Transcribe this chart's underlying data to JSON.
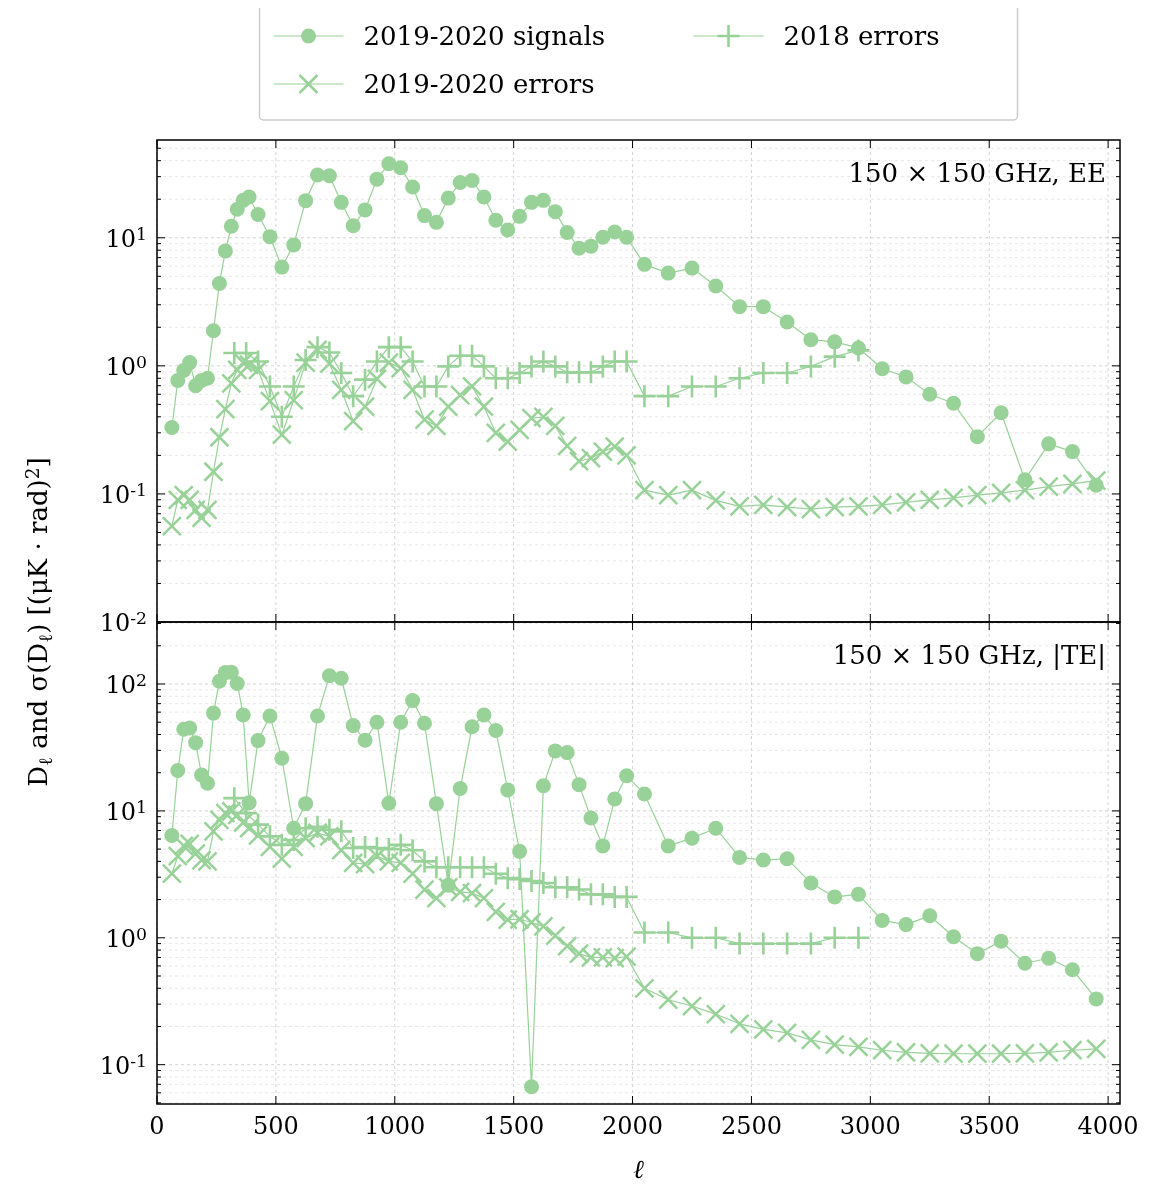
{
  "chart_data": [
    {
      "type": "line",
      "ylabel": "D$_{ℓ}$ and σ(D$_{ℓ}$) [(μK · rad)$^{2}$]",
      "annotations": [
        "150 × 150 GHz, EE"
      ],
      "log": "y",
      "grid": true,
      "legend": "top",
      "tick_labels": "y",
      "line_style": "solid",
      "xlim": [
        0,
        4050
      ],
      "xticks": [
        0,
        500,
        1000,
        1500,
        2000,
        2500,
        3000,
        3500,
        4000
      ],
      "ylim": [
        0.01,
        58
      ],
      "yticks": [
        {
          "value": 0.01,
          "label": "10$^{-2}$"
        },
        {
          "value": 0.1,
          "label": "10$^{-1}$"
        },
        {
          "value": 1,
          "label": "10$^{0}$"
        },
        {
          "value": 10,
          "label": "10$^{1}$"
        }
      ],
      "series": [
        {
          "name": "2019-2020 signals",
          "color": "#98d298",
          "marker": "circle",
          "x": [
            62.5,
            87.5,
            112.5,
            137.5,
            162.5,
            187.5,
            212.5,
            237.5,
            262.5,
            287.5,
            312.5,
            337.5,
            362.5,
            387.5,
            425,
            475,
            525,
            575,
            625,
            675,
            725,
            775,
            825,
            875,
            925,
            975,
            1025,
            1075,
            1125,
            1175,
            1225,
            1275,
            1325,
            1375,
            1425,
            1475,
            1525,
            1575,
            1625,
            1675,
            1725,
            1775,
            1825,
            1875,
            1925,
            1975,
            2050,
            2150,
            2250,
            2350,
            2450,
            2550,
            2650,
            2750,
            2850,
            2950,
            3050,
            3150,
            3250,
            3350,
            3450,
            3550,
            3650,
            3750,
            3850,
            3950
          ],
          "values": [
            0.33,
            0.77,
            0.92,
            1.06,
            0.7,
            0.77,
            0.8,
            1.88,
            4.4,
            7.9,
            12.3,
            16.7,
            19.6,
            20.8,
            15.2,
            10.2,
            5.9,
            8.8,
            19.5,
            30.9,
            30.5,
            18.9,
            12.4,
            16.5,
            28.7,
            37.8,
            35.2,
            24.9,
            14.9,
            13.2,
            20.4,
            27,
            28,
            20.8,
            13.7,
            11.5,
            14.7,
            18.9,
            19.6,
            16,
            11,
            8.3,
            8.6,
            10.1,
            11.1,
            10.1,
            6.2,
            5.3,
            5.8,
            4.2,
            2.9,
            2.9,
            2.2,
            1.6,
            1.54,
            1.38,
            0.95,
            0.82,
            0.6,
            0.51,
            0.28,
            0.43,
            0.129,
            0.246,
            0.214,
            0.117
          ]
        },
        {
          "name": "2019-2020 errors",
          "color": "#98d298",
          "marker": "x",
          "x": [
            62.5,
            87.5,
            112.5,
            137.5,
            162.5,
            187.5,
            212.5,
            237.5,
            262.5,
            287.5,
            312.5,
            337.5,
            362.5,
            387.5,
            425,
            475,
            525,
            575,
            625,
            675,
            725,
            775,
            825,
            875,
            925,
            975,
            1025,
            1075,
            1125,
            1175,
            1225,
            1275,
            1325,
            1375,
            1425,
            1475,
            1525,
            1575,
            1625,
            1675,
            1725,
            1775,
            1825,
            1875,
            1925,
            1975,
            2050,
            2150,
            2250,
            2350,
            2450,
            2550,
            2650,
            2750,
            2850,
            2950,
            3050,
            3150,
            3250,
            3350,
            3450,
            3550,
            3650,
            3750,
            3850,
            3950
          ],
          "values": [
            0.056,
            0.09,
            0.098,
            0.09,
            0.075,
            0.065,
            0.075,
            0.149,
            0.277,
            0.46,
            0.73,
            0.93,
            1.06,
            1.02,
            0.93,
            0.53,
            0.29,
            0.54,
            1.06,
            1.33,
            1.04,
            0.65,
            0.37,
            0.48,
            0.79,
            1.06,
            0.96,
            0.65,
            0.38,
            0.34,
            0.48,
            0.59,
            0.69,
            0.48,
            0.3,
            0.256,
            0.316,
            0.39,
            0.4,
            0.34,
            0.237,
            0.18,
            0.19,
            0.214,
            0.234,
            0.2,
            0.107,
            0.098,
            0.107,
            0.089,
            0.08,
            0.082,
            0.079,
            0.076,
            0.079,
            0.08,
            0.082,
            0.086,
            0.09,
            0.093,
            0.098,
            0.102,
            0.107,
            0.114,
            0.12,
            0.127
          ]
        },
        {
          "name": "2018 errors",
          "color": "#98d298",
          "marker": "cross",
          "x": [
            325,
            375,
            425,
            475,
            525,
            575,
            625,
            675,
            725,
            775,
            825,
            875,
            925,
            975,
            1025,
            1075,
            1125,
            1175,
            1225,
            1275,
            1325,
            1375,
            1425,
            1475,
            1525,
            1575,
            1625,
            1675,
            1725,
            1775,
            1825,
            1875,
            1925,
            1975,
            2050,
            2150,
            2250,
            2350,
            2450,
            2550,
            2650,
            2750,
            2850,
            2950
          ],
          "values": [
            1.26,
            1.26,
            1.08,
            0.69,
            0.4,
            0.69,
            1.11,
            1.4,
            1.27,
            0.88,
            0.58,
            0.78,
            1.08,
            1.4,
            1.4,
            1.08,
            0.69,
            0.69,
            0.99,
            1.2,
            1.2,
            0.99,
            0.8,
            0.8,
            0.88,
            0.99,
            1.08,
            0.99,
            0.89,
            0.89,
            0.89,
            0.99,
            1.08,
            1.08,
            0.58,
            0.58,
            0.69,
            0.69,
            0.8,
            0.88,
            0.88,
            0.99,
            1.18,
            1.32
          ]
        }
      ]
    },
    {
      "type": "line",
      "xlabel": "ℓ",
      "annotations": [
        "150 × 150 GHz, |TE|"
      ],
      "log": "y",
      "grid": true,
      "line_style": "solid",
      "xlim": [
        0,
        4050
      ],
      "xticks": [
        0,
        500,
        1000,
        1500,
        2000,
        2500,
        3000,
        3500,
        4000
      ],
      "ylim": [
        0.049,
        308
      ],
      "yticks": [
        {
          "value": 0.1,
          "label": "10$^{-1}$"
        },
        {
          "value": 1,
          "label": "10$^{0}$"
        },
        {
          "value": 10,
          "label": "10$^{1}$"
        },
        {
          "value": 100,
          "label": "10$^{2}$"
        }
      ],
      "series": [
        {
          "color": "#98d298",
          "marker": "circle",
          "x": [
            62.5,
            87.5,
            112.5,
            137.5,
            162.5,
            187.5,
            212.5,
            237.5,
            262.5,
            287.5,
            312.5,
            337.5,
            362.5,
            387.5,
            425,
            475,
            525,
            575,
            625,
            675,
            725,
            775,
            825,
            875,
            925,
            975,
            1025,
            1075,
            1125,
            1175,
            1225,
            1275,
            1325,
            1375,
            1425,
            1475,
            1525,
            1575,
            1625,
            1675,
            1725,
            1775,
            1825,
            1875,
            1925,
            1975,
            2050,
            2150,
            2250,
            2350,
            2450,
            2550,
            2650,
            2750,
            2850,
            2950,
            3050,
            3150,
            3250,
            3350,
            3450,
            3550,
            3650,
            3750,
            3850,
            3950
          ],
          "values": [
            6.4,
            20.8,
            44,
            45,
            34.5,
            19.2,
            16.5,
            59,
            105,
            123,
            124,
            101,
            57,
            11.6,
            35.8,
            56,
            26,
            7.3,
            11.4,
            56,
            116,
            111,
            47,
            36,
            50,
            11.5,
            50,
            74,
            49,
            11.4,
            2.6,
            15,
            46,
            57,
            43,
            14.6,
            4.8,
            0.067,
            15.8,
            29.7,
            28.8,
            16.1,
            8.8,
            5.3,
            12.4,
            18.9,
            13.6,
            5.3,
            6.1,
            7.3,
            4.3,
            4.1,
            4.2,
            2.7,
            2.1,
            2.2,
            1.37,
            1.27,
            1.49,
            1.02,
            0.75,
            0.94,
            0.63,
            0.69,
            0.56,
            0.33
          ]
        },
        {
          "color": "#98d298",
          "marker": "x",
          "x": [
            62.5,
            87.5,
            112.5,
            137.5,
            162.5,
            187.5,
            212.5,
            237.5,
            262.5,
            287.5,
            312.5,
            337.5,
            362.5,
            387.5,
            425,
            475,
            525,
            575,
            625,
            675,
            725,
            775,
            825,
            875,
            925,
            975,
            1025,
            1075,
            1125,
            1175,
            1225,
            1275,
            1325,
            1375,
            1425,
            1475,
            1525,
            1575,
            1625,
            1675,
            1725,
            1775,
            1825,
            1875,
            1925,
            1975,
            2050,
            2150,
            2250,
            2350,
            2450,
            2550,
            2650,
            2750,
            2850,
            2950,
            3050,
            3150,
            3250,
            3350,
            3450,
            3550,
            3650,
            3750,
            3850,
            3950
          ],
          "values": [
            3.2,
            4.4,
            5.3,
            5.5,
            4.6,
            4.1,
            4.0,
            6.9,
            8.5,
            9.6,
            9.9,
            9.3,
            8.1,
            7.3,
            6.4,
            5.2,
            4.2,
            5.2,
            6.1,
            6.7,
            6.3,
            4.9,
            3.9,
            3.8,
            4.4,
            4.0,
            3.9,
            3.2,
            2.4,
            2.05,
            2.5,
            2.3,
            2.25,
            2.05,
            1.6,
            1.39,
            1.4,
            1.32,
            1.23,
            1.04,
            0.86,
            0.75,
            0.7,
            0.7,
            0.69,
            0.71,
            0.4,
            0.325,
            0.29,
            0.25,
            0.21,
            0.19,
            0.178,
            0.157,
            0.144,
            0.138,
            0.13,
            0.125,
            0.123,
            0.122,
            0.122,
            0.122,
            0.123,
            0.125,
            0.13,
            0.133
          ]
        },
        {
          "color": "#98d298",
          "marker": "cross",
          "x": [
            325,
            375,
            425,
            475,
            525,
            575,
            625,
            675,
            725,
            775,
            825,
            875,
            925,
            975,
            1025,
            1075,
            1125,
            1175,
            1225,
            1275,
            1325,
            1375,
            1425,
            1475,
            1525,
            1575,
            1625,
            1675,
            1725,
            1775,
            1825,
            1875,
            1925,
            1975,
            2050,
            2150,
            2250,
            2350,
            2450,
            2550,
            2650,
            2750,
            2850,
            2950
          ],
          "values": [
            12.6,
            9.6,
            7.8,
            6.3,
            5.4,
            5.9,
            7.3,
            7.5,
            7.1,
            6.9,
            5.1,
            5.2,
            5.1,
            5.0,
            5.4,
            4.9,
            4.0,
            3.6,
            3.6,
            3.6,
            3.6,
            3.6,
            3.2,
            2.95,
            2.9,
            2.8,
            2.7,
            2.5,
            2.5,
            2.4,
            2.2,
            2.2,
            2.1,
            2.1,
            1.1,
            1.1,
            1.0,
            1.0,
            0.9,
            0.9,
            0.9,
            0.9,
            1.0,
            1.0
          ]
        }
      ]
    }
  ]
}
